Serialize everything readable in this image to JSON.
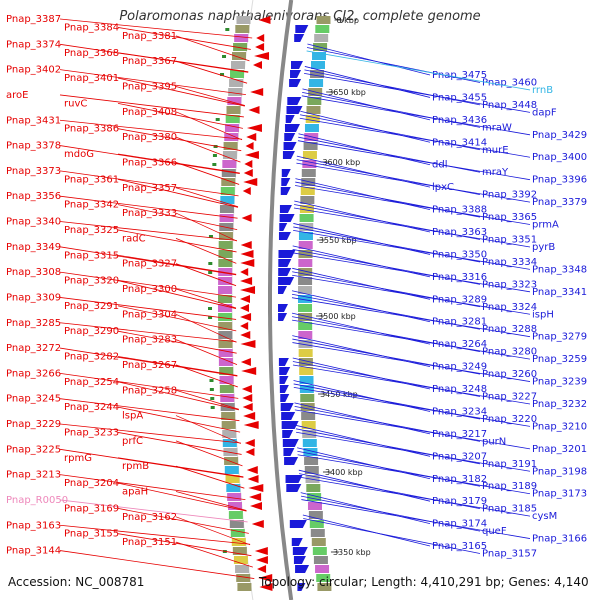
{
  "title": "Polaromonas naphthalenivorans CJ2, complete genome",
  "footer": {
    "accession": "Accession: NC_008781",
    "summary": "Topology: circular; Length: 4,410,291 bp; Genes: 4,140"
  },
  "colors": {
    "forward_strand": "#e60000",
    "reverse_strand": "#1a1ad9",
    "rna_gene": "#ee88bb",
    "highlight": "#33b5e5",
    "backbone": "#888888"
  },
  "ruler_ticks": [
    "0 kbp",
    "3650 kbp",
    "3600 kbp",
    "3550 kbp",
    "3500 kbp",
    "3450 kbp",
    "3400 kbp",
    "3350 kbp"
  ],
  "left_labels": [
    "Pnap_3387",
    "Pnap_3384",
    "Pnap_3381",
    "Pnap_3374",
    "Pnap_3368",
    "Pnap_3367",
    "Pnap_3402",
    "Pnap_3401",
    "Pnap_3395",
    "aroE",
    "ruvC",
    "Pnap_3408",
    "Pnap_3431",
    "Pnap_3386",
    "Pnap_3380",
    "Pnap_3378",
    "mdoG",
    "Pnap_3366",
    "Pnap_3373",
    "Pnap_3361",
    "Pnap_3357",
    "Pnap_3356",
    "Pnap_3342",
    "Pnap_3333",
    "Pnap_3340",
    "Pnap_3325",
    "radC",
    "Pnap_3349",
    "Pnap_3315",
    "Pnap_3327",
    "Pnap_3308",
    "Pnap_3320",
    "Pnap_3300",
    "Pnap_3309",
    "Pnap_3291",
    "Pnap_3304",
    "Pnap_3285",
    "Pnap_3290",
    "Pnap_3283",
    "Pnap_3272",
    "Pnap_3282",
    "Pnap_3267",
    "Pnap_3266",
    "Pnap_3254",
    "Pnap_3258",
    "Pnap_3245",
    "Pnap_3244",
    "lspA",
    "Pnap_3229",
    "Pnap_3233",
    "prfC",
    "Pnap_3225",
    "rpmG",
    "rpmB",
    "Pnap_3213",
    "Pnap_3204",
    "apaH",
    "Pnap_R0050",
    "Pnap_3169",
    "Pnap_3162",
    "Pnap_3163",
    "Pnap_3155",
    "Pnap_3151",
    "Pnap_3144"
  ],
  "right_labels": [
    "Pnap_3475",
    "Pnap_3460",
    "rrnB",
    "Pnap_3455",
    "Pnap_3448",
    "dapF",
    "Pnap_3436",
    "mraW",
    "Pnap_3429",
    "Pnap_3414",
    "murE",
    "Pnap_3400",
    "ddl",
    "mraY",
    "Pnap_3396",
    "lpxC",
    "Pnap_3392",
    "Pnap_3379",
    "Pnap_3388",
    "Pnap_3365",
    "prmA",
    "Pnap_3363",
    "Pnap_3351",
    "pyrB",
    "Pnap_3350",
    "Pnap_3334",
    "Pnap_3348",
    "Pnap_3316",
    "Pnap_3323",
    "Pnap_3341",
    "Pnap_3289",
    "Pnap_3324",
    "ispH",
    "Pnap_3281",
    "Pnap_3288",
    "Pnap_3279",
    "Pnap_3264",
    "Pnap_3280",
    "Pnap_3259",
    "Pnap_3249",
    "Pnap_3260",
    "Pnap_3239",
    "Pnap_3248",
    "Pnap_3227",
    "Pnap_3232",
    "Pnap_3234",
    "Pnap_3220",
    "Pnap_3210",
    "Pnap_3217",
    "purN",
    "Pnap_3201",
    "Pnap_3207",
    "Pnap_3191",
    "Pnap_3198",
    "Pnap_3182",
    "Pnap_3189",
    "Pnap_3173",
    "Pnap_3179",
    "Pnap_3185",
    "cysM",
    "Pnap_3174",
    "queF",
    "Pnap_3166",
    "Pnap_3165",
    "Pnap_3157"
  ]
}
